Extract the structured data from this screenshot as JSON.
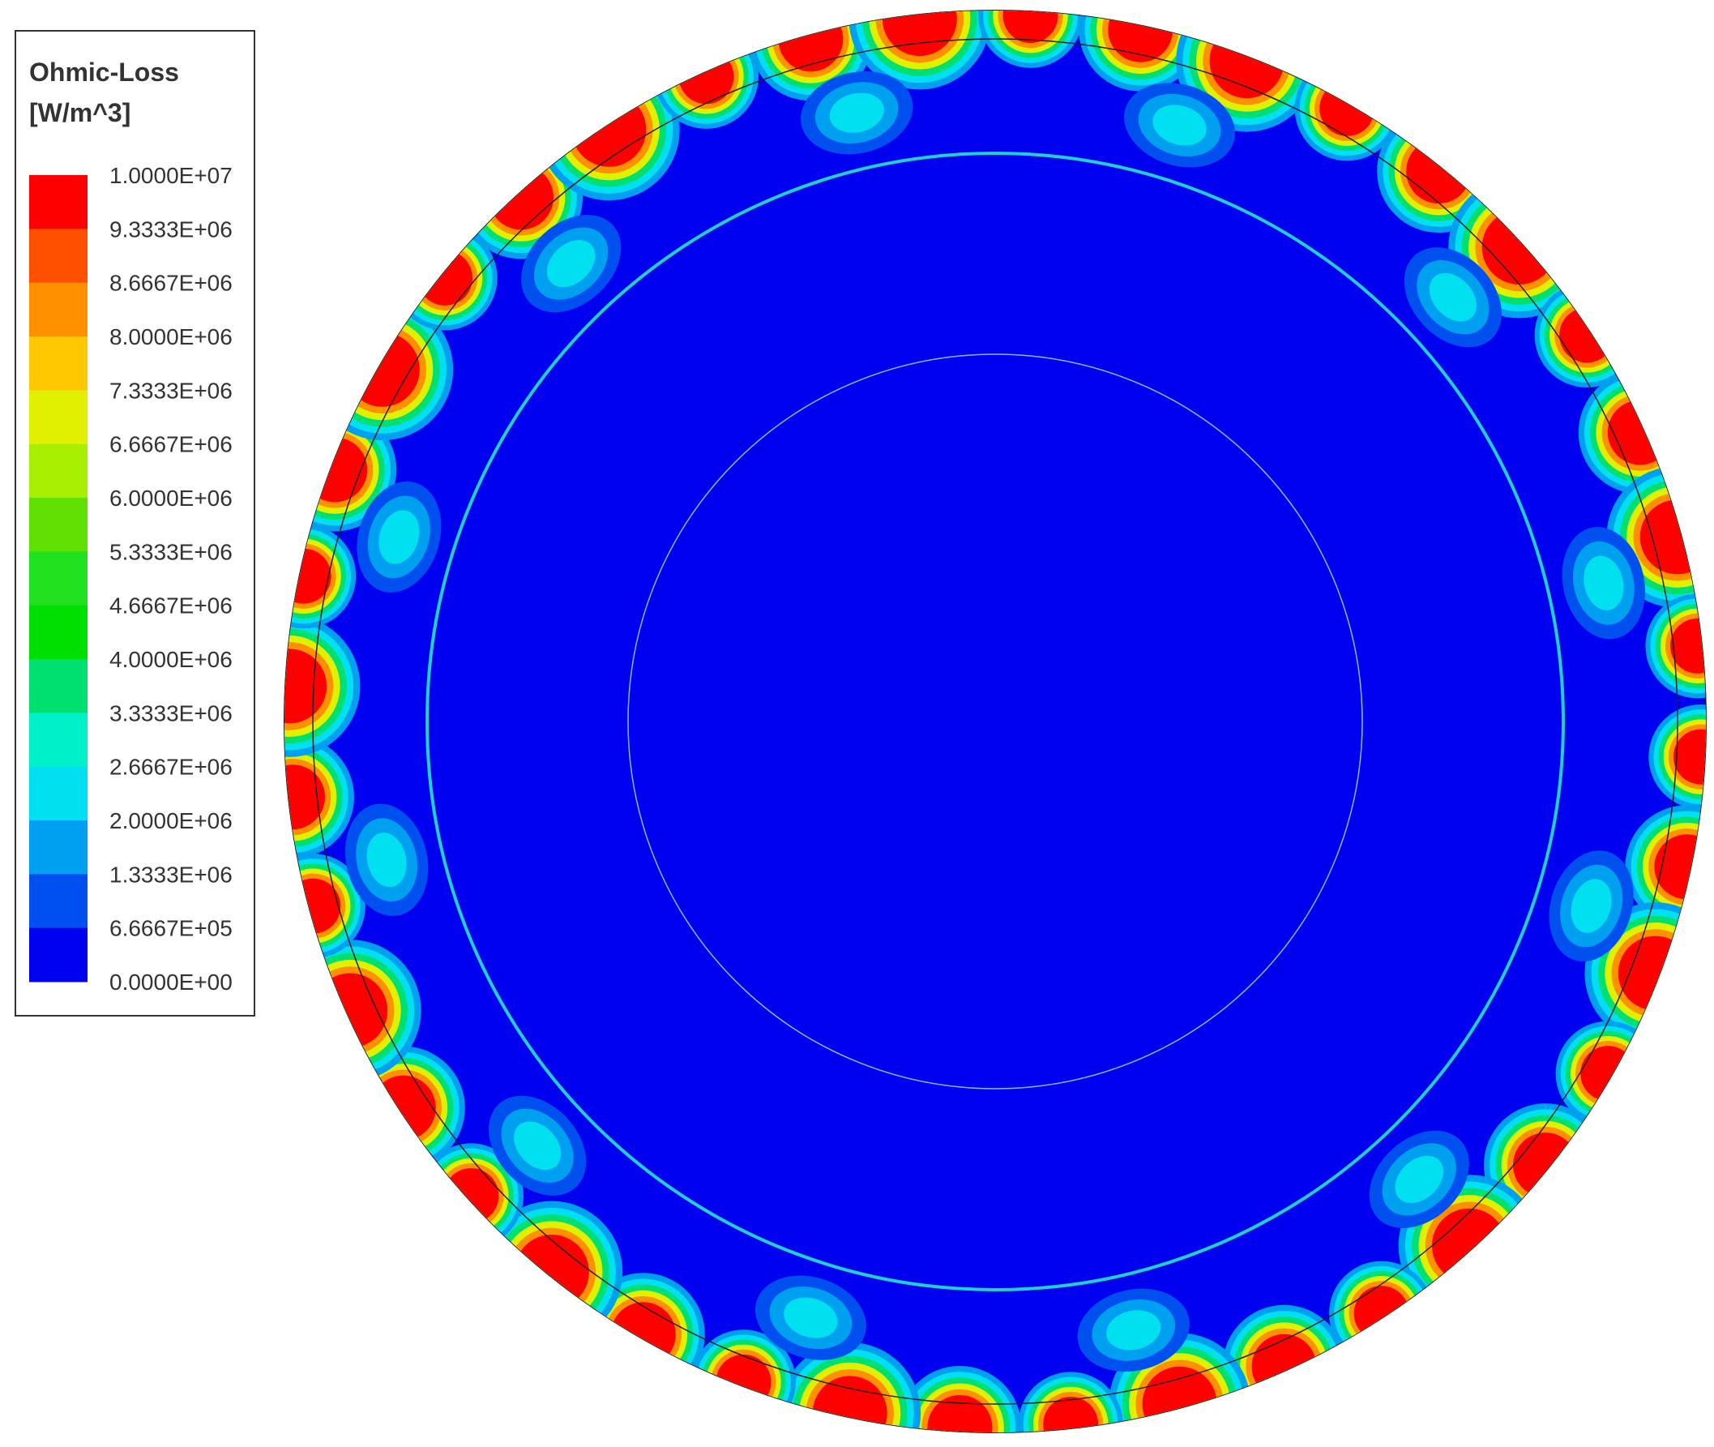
{
  "legend": {
    "title": "Ohmic-Loss",
    "unit": "[W/m^3]",
    "labels": [
      "1.0000E+07",
      "9.3333E+06",
      "8.6667E+06",
      "8.0000E+06",
      "7.3333E+06",
      "6.6667E+06",
      "6.0000E+06",
      "5.3333E+06",
      "4.6667E+06",
      "4.0000E+06",
      "3.3333E+06",
      "2.6667E+06",
      "2.0000E+06",
      "1.3333E+06",
      "6.6667E+05",
      "0.0000E+00"
    ]
  }
}
